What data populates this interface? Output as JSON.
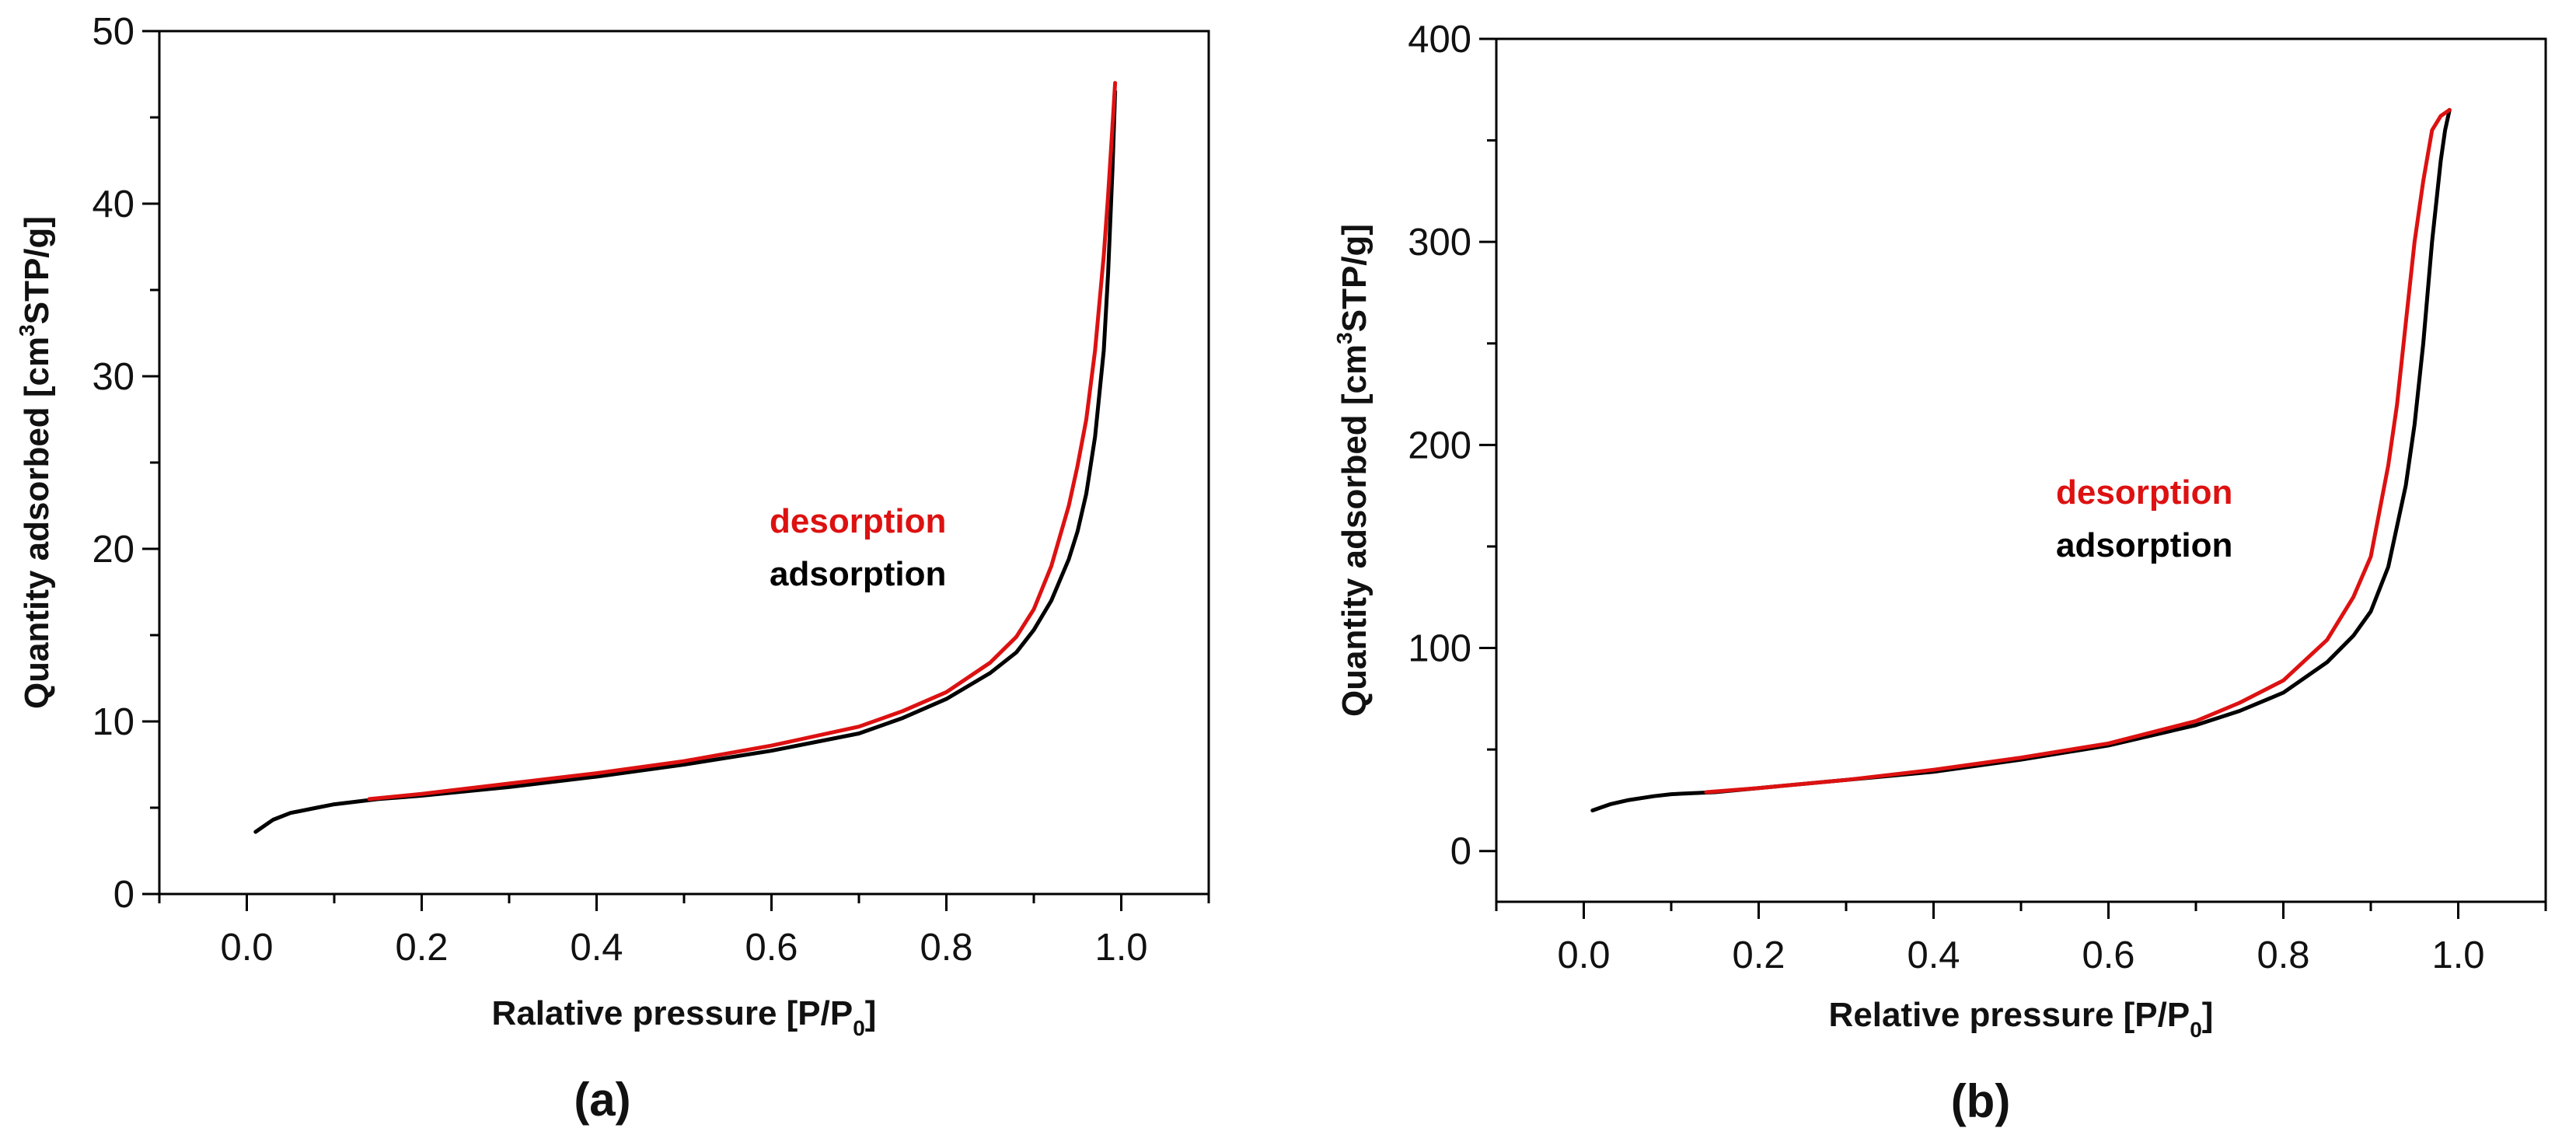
{
  "chart_data": [
    {
      "type": "line",
      "panel_label": "(a)",
      "xlabel": "Ralative pressure [P/P",
      "xlabel_sub": "0",
      "xlabel_end": "]",
      "ylabel_pre": "Quantity adsorbed [cm",
      "ylabel_sup": "3",
      "ylabel_post": "STP/g]",
      "xlim": [
        -0.1,
        1.1
      ],
      "ylim": [
        0,
        50
      ],
      "xticks": [
        0.0,
        0.2,
        0.4,
        0.6,
        0.8,
        1.0
      ],
      "xtick_labels": [
        "0.0",
        "0.2",
        "0.4",
        "0.6",
        "0.8",
        "1.0"
      ],
      "yticks": [
        0,
        10,
        20,
        30,
        40,
        50
      ],
      "ytick_labels": [
        "0",
        "10",
        "20",
        "30",
        "40",
        "50"
      ],
      "legend": {
        "desorption": "desorption",
        "adsorption": "adsorption"
      },
      "series": [
        {
          "name": "adsorption",
          "color": "#000000",
          "x": [
            0.01,
            0.03,
            0.05,
            0.08,
            0.1,
            0.15,
            0.2,
            0.3,
            0.4,
            0.5,
            0.6,
            0.7,
            0.75,
            0.8,
            0.85,
            0.88,
            0.9,
            0.92,
            0.94,
            0.95,
            0.96,
            0.97,
            0.98,
            0.985,
            0.99,
            0.993
          ],
          "y": [
            3.6,
            4.3,
            4.7,
            5.0,
            5.2,
            5.5,
            5.7,
            6.2,
            6.8,
            7.5,
            8.3,
            9.3,
            10.2,
            11.3,
            12.8,
            14.0,
            15.3,
            17.0,
            19.4,
            21.0,
            23.2,
            26.5,
            31.5,
            36.0,
            42.0,
            46.5
          ]
        },
        {
          "name": "desorption",
          "color": "#dd1111",
          "x": [
            0.14,
            0.2,
            0.3,
            0.4,
            0.5,
            0.6,
            0.7,
            0.75,
            0.8,
            0.85,
            0.88,
            0.9,
            0.92,
            0.94,
            0.95,
            0.96,
            0.97,
            0.98,
            0.985,
            0.99,
            0.993
          ],
          "y": [
            5.5,
            5.8,
            6.4,
            7.0,
            7.7,
            8.6,
            9.7,
            10.6,
            11.7,
            13.4,
            14.9,
            16.5,
            19.0,
            22.5,
            24.8,
            27.5,
            31.5,
            37.0,
            40.5,
            44.5,
            47.0
          ]
        }
      ]
    },
    {
      "type": "line",
      "panel_label": "(b)",
      "xlabel": "Relative pressure [P/P",
      "xlabel_sub": "0",
      "xlabel_end": "]",
      "ylabel_pre": "Quantity adsorbed [cm",
      "ylabel_sup": "3",
      "ylabel_post": "STP/g]",
      "xlim": [
        -0.1,
        1.1
      ],
      "ylim": [
        -25,
        400
      ],
      "xticks": [
        0.0,
        0.2,
        0.4,
        0.6,
        0.8,
        1.0
      ],
      "xtick_labels": [
        "0.0",
        "0.2",
        "0.4",
        "0.6",
        "0.8",
        "1.0"
      ],
      "yticks": [
        0,
        100,
        200,
        300,
        400
      ],
      "ytick_labels": [
        "0",
        "100",
        "200",
        "300",
        "400"
      ],
      "legend": {
        "desorption": "desorption",
        "adsorption": "adsorption"
      },
      "series": [
        {
          "name": "adsorption",
          "color": "#000000",
          "x": [
            0.01,
            0.03,
            0.05,
            0.08,
            0.1,
            0.15,
            0.2,
            0.3,
            0.4,
            0.5,
            0.6,
            0.7,
            0.75,
            0.8,
            0.85,
            0.88,
            0.9,
            0.92,
            0.94,
            0.95,
            0.96,
            0.97,
            0.98,
            0.985,
            0.99
          ],
          "y": [
            20,
            23,
            25,
            27,
            28,
            29,
            31,
            35,
            39,
            45,
            52,
            62,
            69,
            78,
            93,
            106,
            118,
            140,
            180,
            210,
            250,
            300,
            340,
            355,
            365
          ]
        },
        {
          "name": "desorption",
          "color": "#dd1111",
          "x": [
            0.14,
            0.2,
            0.3,
            0.4,
            0.5,
            0.6,
            0.7,
            0.75,
            0.8,
            0.85,
            0.88,
            0.9,
            0.92,
            0.93,
            0.94,
            0.95,
            0.96,
            0.97,
            0.98,
            0.99
          ],
          "y": [
            29,
            31,
            35,
            40,
            46,
            53,
            64,
            73,
            84,
            104,
            125,
            145,
            190,
            220,
            260,
            300,
            330,
            355,
            362,
            365
          ]
        }
      ]
    }
  ]
}
